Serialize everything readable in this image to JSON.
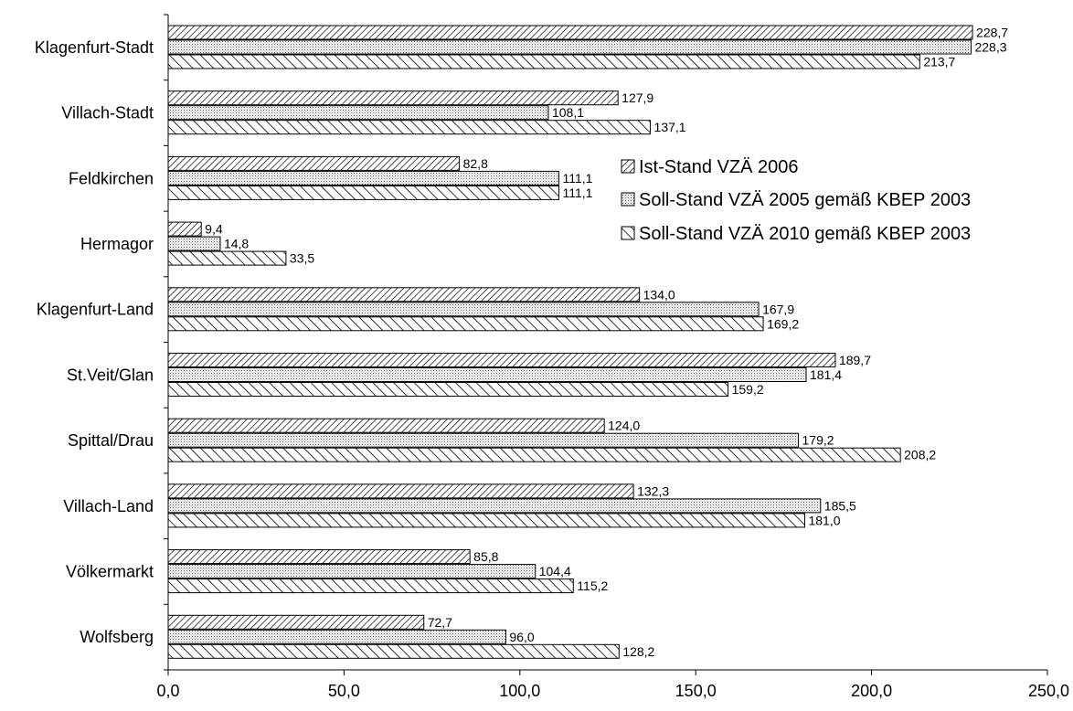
{
  "chart_data": {
    "type": "bar",
    "orientation": "horizontal",
    "title": "",
    "xlabel": "",
    "ylabel": "",
    "xlim": [
      0,
      250
    ],
    "x_ticks": [
      "0,0",
      "50,0",
      "100,0",
      "150,0",
      "200,0",
      "250,0"
    ],
    "grid": false,
    "legend_position": "right",
    "categories": [
      "Klagenfurt-Stadt",
      "Villach-Stadt",
      "Feldkirchen",
      "Hermagor",
      "Klagenfurt-Land",
      "St.Veit/Glan",
      "Spittal/Drau",
      "Villach-Land",
      "Völkermarkt",
      "Wolfsberg"
    ],
    "series": [
      {
        "name": "Ist-Stand VZÄ 2006",
        "pattern": "dense-diagonal",
        "values": [
          228.7,
          127.9,
          82.8,
          9.4,
          134.0,
          189.7,
          124.0,
          132.3,
          85.8,
          72.7
        ],
        "labels": [
          "228,7",
          "127,9",
          "82,8",
          "9,4",
          "134,0",
          "189,7",
          "124,0",
          "132,3",
          "85,8",
          "72,7"
        ]
      },
      {
        "name": "Soll-Stand VZÄ 2005 gemäß KBEP 2003",
        "pattern": "dotted",
        "values": [
          228.3,
          108.1,
          111.1,
          14.8,
          167.9,
          181.4,
          179.2,
          185.5,
          104.4,
          96.0
        ],
        "labels": [
          "228,3",
          "108,1",
          "111,1",
          "14,8",
          "167,9",
          "181,4",
          "179,2",
          "185,5",
          "104,4",
          "96,0"
        ]
      },
      {
        "name": "Soll-Stand VZÄ 2010 gemäß KBEP 2003",
        "pattern": "wide-diagonal",
        "values": [
          213.7,
          137.1,
          111.1,
          33.5,
          169.2,
          159.2,
          208.2,
          181.0,
          115.2,
          128.2
        ],
        "labels": [
          "213,7",
          "137,1",
          "111,1",
          "33,5",
          "169,2",
          "159,2",
          "208,2",
          "181,0",
          "115,2",
          "128,2"
        ]
      }
    ]
  },
  "colors": {
    "ink": "#000000",
    "background": "#ffffff"
  }
}
